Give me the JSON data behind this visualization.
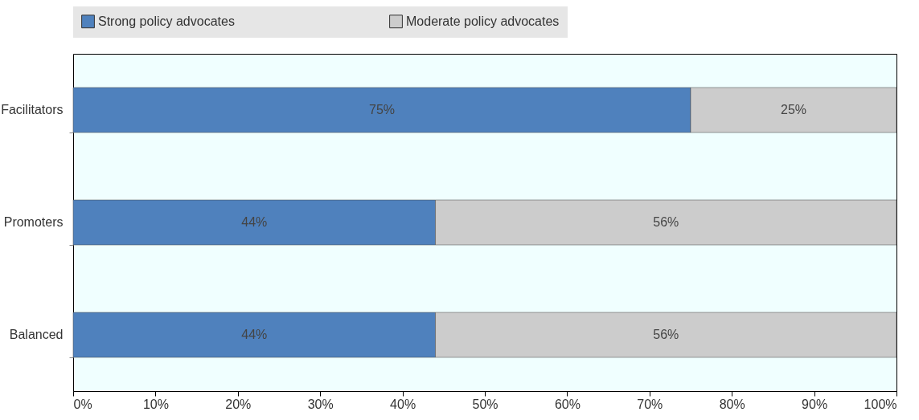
{
  "chart_data": {
    "type": "bar",
    "orientation": "horizontal",
    "stacked": true,
    "categories": [
      "Facilitators",
      "Promoters",
      "Balanced"
    ],
    "series": [
      {
        "name": "Strong policy advocates",
        "color": "#4f81bd",
        "values": [
          75,
          44,
          44
        ],
        "value_labels": [
          "75%",
          "44%",
          "44%"
        ]
      },
      {
        "name": "Moderate policy advocates",
        "color": "#cccccc",
        "values": [
          25,
          56,
          56
        ],
        "value_labels": [
          "25%",
          "56%",
          "56%"
        ]
      }
    ],
    "xlim": [
      0,
      100
    ],
    "xticks": [
      {
        "value": 0,
        "label": "0%"
      },
      {
        "value": 10,
        "label": "10%"
      },
      {
        "value": 20,
        "label": "20%"
      },
      {
        "value": 30,
        "label": "30%"
      },
      {
        "value": 40,
        "label": "40%"
      },
      {
        "value": 50,
        "label": "50%"
      },
      {
        "value": 60,
        "label": "60%"
      },
      {
        "value": 70,
        "label": "70%"
      },
      {
        "value": 80,
        "label": "80%"
      },
      {
        "value": 90,
        "label": "90%"
      },
      {
        "value": 100,
        "label": "100%"
      }
    ],
    "grid": false,
    "legend": "top"
  }
}
